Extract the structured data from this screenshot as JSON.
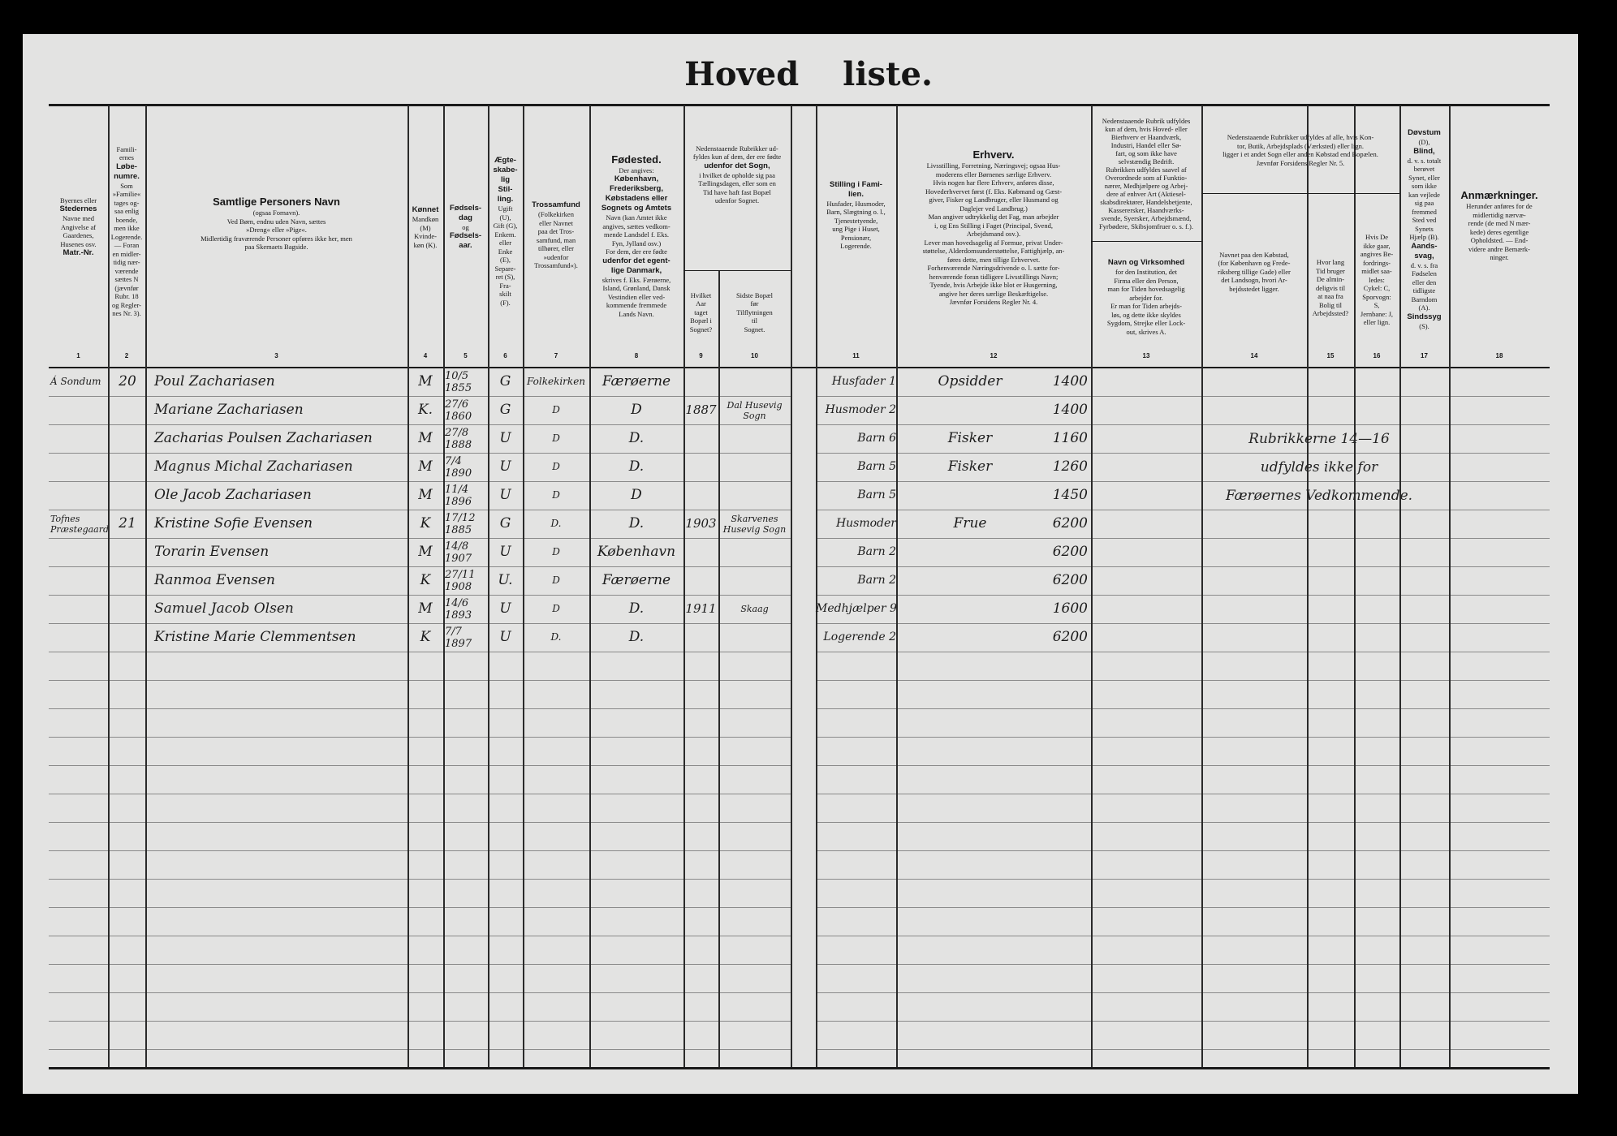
{
  "title": "Hoved liste.",
  "header": {
    "c1": {
      "num": "1",
      "lines": [
        "Byernes eller",
        "Stedernes",
        "Navne med",
        "Angivelse af",
        "Gaardenes,",
        "Husenes osv.",
        "Matr.-Nr."
      ],
      "bold": [
        1,
        6
      ]
    },
    "c2": {
      "num": "2",
      "lines": [
        "Famili-",
        "ernes",
        "Løbe-",
        "numre.",
        "Som",
        "»Familie«",
        "tages og-",
        "saa enlig",
        "boende,",
        "men ikke",
        "Logerende.",
        "— Foran",
        "en midler-",
        "tidig nær-",
        "værende",
        "sættes N",
        "(jævnfør",
        "Rubr. 18",
        "og Regler-",
        "nes Nr. 3)."
      ],
      "bold": [
        2,
        3
      ]
    },
    "c3": {
      "num": "3",
      "lines": [
        "Samtlige Personers Navn",
        "(ogsaa Fornavn).",
        "Ved Børn, endnu uden Navn, sættes",
        "»Dreng« eller »Pige«.",
        "Midlertidig fraværende Personer opføres ikke her, men",
        "paa Skemaets Bagside."
      ],
      "bold": [
        0
      ]
    },
    "c4": {
      "num": "4",
      "lines": [
        "Kønnet",
        "Mandkøn",
        "(M)",
        "Kvinde-",
        "køn (K)."
      ],
      "bold": [
        0
      ]
    },
    "c5": {
      "num": "5",
      "lines": [
        "Fødsels-",
        "dag",
        "og",
        "Fødsels-",
        "aar."
      ],
      "bold": [
        0,
        1,
        3,
        4
      ]
    },
    "c6": {
      "num": "6",
      "lines": [
        "Ægte-",
        "skabe-",
        "lig",
        "Stil-",
        "ling.",
        "Ugift",
        "(U),",
        "Gift (G),",
        "Enkem.",
        "eller",
        "Enke",
        "(E),",
        "Separe-",
        "ret (S),",
        "Fra-",
        "skilt",
        "(F)."
      ],
      "bold": [
        0,
        1,
        2,
        3,
        4
      ]
    },
    "c7": {
      "num": "7",
      "lines": [
        "Trossamfund",
        "(Folkekirken",
        "eller Navnet",
        "paa det Tros-",
        "samfund, man",
        "tilhører, eller",
        "»udenfor",
        "Trossamfund«)."
      ],
      "bold": [
        0
      ]
    },
    "c8": {
      "num": "8",
      "lines": [
        "Fødested.",
        "Der angives:",
        "København,",
        "Frederiksberg,",
        "Købstadens eller",
        "Sognets og Amtets",
        "Navn (kan Amtet ikke",
        "angives, sættes vedkom-",
        "mende Landsdel f. Eks.",
        "Fyn, Jylland osv.)",
        "For dem, der ere fødte",
        "udenfor det egent-",
        "lige Danmark,",
        "skrives f. Eks. Færøerne,",
        "Island, Grønland, Dansk",
        "Vestindien eller ved-",
        "kommende fremmede",
        "Lands Navn."
      ],
      "bold": [
        0,
        2,
        3,
        4,
        5,
        11,
        12
      ]
    },
    "c9_10_top": {
      "lines": [
        "Nedenstaaende Rubrikker ud-",
        "fyldes kun af dem, der ere fødte",
        "udenfor det Sogn,",
        "i hvilket de opholde sig paa",
        "Tællingsdagen, eller som en",
        "Tid have haft fast Bopæl",
        "udenfor Sognet."
      ],
      "bold": [
        2
      ]
    },
    "c9": {
      "num": "9",
      "lines": [
        "Hvilket",
        "Aar",
        "taget",
        "Bopæl i",
        "Sognet?"
      ],
      "bold": []
    },
    "c10": {
      "num": "10",
      "lines": [
        "Sidste Bopæl",
        "før",
        "Tilflytningen",
        "til",
        "Sognet."
      ],
      "bold": []
    },
    "c11": {
      "num": "11",
      "lines": [
        "Stilling i Fami-",
        "lien.",
        "Husfader, Husmoder,",
        "Barn, Slægtning o. l.,",
        "Tjenestetyende,",
        "ung Pige i Huset,",
        "Pensionær,",
        "Logerende."
      ],
      "bold": [
        0,
        1
      ]
    },
    "c12": {
      "num": "12",
      "lines": [
        "Erhverv.",
        "Livsstilling, Forretning, Næringsvej; ogsaa Hus-",
        "moderens eller Børnenes særlige Erhverv.",
        "Hvis nogen har flere Erhverv, anføres disse,",
        "Hovederhvervet først (f. Eks. Købmand og Gæst-",
        "giver, Fisker og Landbruger, eller Husmand og",
        "Daglejer ved Landbrug.)",
        "Man angiver udtrykkelig det Fag, man arbejder",
        "i, og Ens Stilling i Faget (Principal, Svend,",
        "Arbejdsmand osv.).",
        "Lever man hovedsagelig af Formue, privat Under-",
        "støttelse, Alderdomsunderstøttelse, Fattighjælp, an-",
        "føres dette, men tillige Erhvervet.",
        "Forhenværende Næringsdrivende o. l. sætte for-",
        "henværende foran tidligere Livsstillings Navn;",
        "Tyende, hvis Arbejde ikke blot er Husgerning,",
        "angive her deres særlige Beskæftigelse.",
        "Jævnfør Forsidens Regler Nr. 4."
      ],
      "bold": [
        0
      ]
    },
    "c13_top": {
      "lines": [
        "Nedenstaaende Rubrik udfyldes",
        "kun af dem, hvis Hoved- eller",
        "Bierhverv er Haandværk,",
        "Industri, Handel eller Sø-",
        "fart, og som ikke have",
        "selvstændig Bedrift.",
        "Rubrikken udfyldes saavel af",
        "Overordnede som af Funktio-",
        "nærer, Medhjælpere og Arbej-",
        "dere af enhver Art (Aktiesel-",
        "skabsdirektører, Handelsbetjente,",
        "Kasserersker, Haandværks-",
        "svende, Syersker, Arbejdsmænd,",
        "Fyrbødere, Skibsjomfruer o. s. f.)."
      ],
      "bold": []
    },
    "c13": {
      "num": "13",
      "lines": [
        "Navn og Virksomhed",
        "for den Institution, det",
        "Firma eller den Person,",
        "man for Tiden hovedsagelig",
        "arbejder for.",
        "Er man for Tiden arbejds-",
        "løs, og dette ikke skyldes",
        "Sygdom, Strejke eller Lock-",
        "out, skrives A."
      ],
      "bold": [
        0
      ]
    },
    "c14_16_top": {
      "lines": [
        "Nedenstaaende Rubrikker udfyldes af alle, hvis Kon-",
        "tor, Butik, Arbejdsplads (Værksted) eller lign.",
        "ligger i et andet Sogn eller anden Købstad end Bopælen.",
        "Jævnfør Forsidens Regler Nr. 5."
      ],
      "bold": []
    },
    "c14": {
      "num": "14",
      "lines": [
        "Navnet paa den Købstad,",
        "(for København og Frede-",
        "riksberg tillige Gade) eller",
        "det Landsogn, hvori Ar-",
        "bejdsstedet ligger."
      ],
      "bold": []
    },
    "c15": {
      "num": "15",
      "lines": [
        "Hvor lang",
        "Tid bruger",
        "De almin-",
        "deligvis til",
        "at naa fra",
        "Bolig til",
        "Arbejdssted?"
      ],
      "bold": []
    },
    "c16": {
      "num": "16",
      "lines": [
        "Hvis De",
        "ikke gaar,",
        "angives Be-",
        "fordrings-",
        "midlet saa-",
        "ledes:",
        "Cykel: C,",
        "Sporvogn:",
        "S,",
        "Jernbane: J,",
        "eller lign."
      ],
      "bold": []
    },
    "c17": {
      "num": "17",
      "lines": [
        "Døvstum",
        "(D),",
        "Blind,",
        "d. v. s. totalt",
        "berøvet",
        "Synet, eller",
        "som ikke",
        "kan vejlede",
        "sig paa",
        "fremmed",
        "Sted ved",
        "Synets",
        "Hjælp (B).",
        "Aands-",
        "svag,",
        "d. v. s. fra",
        "Fødselen",
        "eller den",
        "tidligste",
        "Barndom",
        "(A).",
        "Sindssyg",
        "(S)."
      ],
      "bold": [
        0,
        2,
        13,
        14,
        21
      ]
    },
    "c18": {
      "num": "18",
      "lines": [
        "Anmærkninger.",
        "Herunder anføres for de",
        "midlertidig nærvæ-",
        "rende (de med N mær-",
        "kede) deres egentlige",
        "Opholdsted. — End-",
        "videre andre Bemærk-",
        "ninger."
      ],
      "bold": [
        0
      ]
    }
  },
  "rows": [
    {
      "place": "Á Sondum",
      "family_no": "20",
      "name": "Poul Zachariasen",
      "sex": "M",
      "birth": "10/5 1855",
      "civil": "G",
      "faith": "Folkekirken",
      "birthplace": "Færøerne",
      "year_moved": "",
      "prev_residence": "",
      "position": "Husfader 1",
      "occupation": "Opsidder",
      "code": "1400"
    },
    {
      "place": "",
      "family_no": "",
      "name": "Mariane Zachariasen",
      "sex": "K.",
      "birth": "27/6 1860",
      "civil": "G",
      "faith": "D",
      "birthplace": "D",
      "year_moved": "1887",
      "prev_residence": "Dal Husevig Sogn",
      "position": "Husmoder 2",
      "occupation": "",
      "code": "1400"
    },
    {
      "place": "",
      "family_no": "",
      "name": "Zacharias Poulsen Zachariasen",
      "sex": "M",
      "birth": "27/8 1888",
      "civil": "U",
      "faith": "D",
      "birthplace": "D.",
      "year_moved": "",
      "prev_residence": "",
      "position": "Barn 6",
      "occupation": "Fisker",
      "code": "1160"
    },
    {
      "place": "",
      "family_no": "",
      "name": "Magnus Michal Zachariasen",
      "sex": "M",
      "birth": "7/4 1890",
      "civil": "U",
      "faith": "D",
      "birthplace": "D.",
      "year_moved": "",
      "prev_residence": "",
      "position": "Barn 5",
      "occupation": "Fisker",
      "code": "1260"
    },
    {
      "place": "",
      "family_no": "",
      "name": "Ole Jacob Zachariasen",
      "sex": "M",
      "birth": "11/4 1896",
      "civil": "U",
      "faith": "D",
      "birthplace": "D",
      "year_moved": "",
      "prev_residence": "",
      "position": "Barn 5",
      "occupation": "",
      "code": "1450"
    },
    {
      "place": "Tofnes Præstegaard",
      "family_no": "21",
      "name": "Kristine Sofie Evensen",
      "sex": "K",
      "birth": "17/12 1885",
      "civil": "G",
      "faith": "D.",
      "birthplace": "D.",
      "year_moved": "1903",
      "prev_residence": "Skarvenes Husevig Sogn",
      "position": "Husmoder",
      "occupation": "Frue",
      "code": "6200"
    },
    {
      "place": "",
      "family_no": "",
      "name": "Torarin Evensen",
      "sex": "M",
      "birth": "14/8 1907",
      "civil": "U",
      "faith": "D",
      "birthplace": "København",
      "year_moved": "",
      "prev_residence": "",
      "position": "Barn 2",
      "occupation": "",
      "code": "6200"
    },
    {
      "place": "",
      "family_no": "",
      "name": "Ranmoa Evensen",
      "sex": "K",
      "birth": "27/11 1908",
      "civil": "U.",
      "faith": "D",
      "birthplace": "Færøerne",
      "year_moved": "",
      "prev_residence": "",
      "position": "Barn 2",
      "occupation": "",
      "code": "6200"
    },
    {
      "place": "",
      "family_no": "",
      "name": "Samuel Jacob Olsen",
      "sex": "M",
      "birth": "14/6 1893",
      "civil": "U",
      "faith": "D",
      "birthplace": "D.",
      "year_moved": "1911",
      "prev_residence": "Skaag",
      "position": "Medhjælper 9",
      "occupation": "",
      "code": "1600"
    },
    {
      "place": "",
      "family_no": "",
      "name": "Kristine Marie Clemmentsen",
      "sex": "K",
      "birth": "7/7 1897",
      "civil": "U",
      "faith": "D.",
      "birthplace": "D.",
      "year_moved": "",
      "prev_residence": "",
      "position": "Logerende 2",
      "occupation": "",
      "code": "6200"
    }
  ],
  "annotation_14_16": [
    "Rubrikkerne 14—16",
    "udfyldes ikke for",
    "Færøernes Vedkommende."
  ]
}
